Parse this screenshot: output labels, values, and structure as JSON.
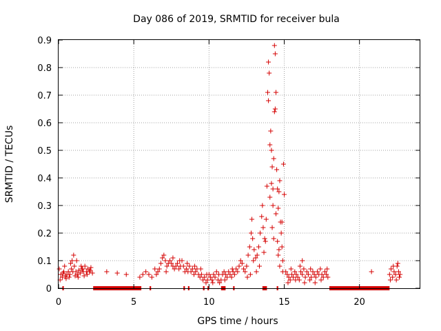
{
  "chart_data": {
    "type": "scatter",
    "title": "Day 086 of 2019, SRMTID for receiver bula",
    "xlabel": "GPS time / hours",
    "ylabel": "SRMTID / TECUs",
    "xlim": [
      0,
      24
    ],
    "ylim": [
      0,
      0.9
    ],
    "x_ticks": [
      0,
      5,
      10,
      15,
      20
    ],
    "y_ticks": [
      0,
      0.1,
      0.2,
      0.3,
      0.4,
      0.5,
      0.6,
      0.7,
      0.8,
      0.9
    ],
    "x_tick_labels": [
      "0",
      "5",
      "10",
      "15",
      "20"
    ],
    "y_tick_labels": [
      "0",
      "0.1",
      "0.2",
      "0.3",
      "0.4",
      "0.5",
      "0.6",
      "0.7",
      "0.8",
      "0.9"
    ],
    "marker": "+",
    "color": "#d40000",
    "grid": true,
    "series": [
      {
        "name": "SRMTID",
        "points": [
          [
            0.05,
            0.07
          ],
          [
            0.15,
            0.05
          ],
          [
            0.25,
            0.04
          ],
          [
            0.35,
            0.06
          ],
          [
            0.45,
            0.045
          ],
          [
            0.55,
            0.05
          ],
          [
            0.65,
            0.06
          ],
          [
            0.75,
            0.05
          ],
          [
            0.85,
            0.07
          ],
          [
            0.9,
            0.1
          ],
          [
            1.0,
            0.12
          ],
          [
            1.05,
            0.08
          ],
          [
            1.15,
            0.06
          ],
          [
            1.25,
            0.05
          ],
          [
            1.35,
            0.065
          ],
          [
            1.45,
            0.055
          ],
          [
            1.55,
            0.07
          ],
          [
            1.65,
            0.06
          ],
          [
            1.75,
            0.08
          ],
          [
            1.85,
            0.06
          ],
          [
            1.95,
            0.07
          ],
          [
            2.05,
            0.06
          ],
          [
            2.15,
            0.075
          ],
          [
            2.25,
            0.055
          ],
          [
            0.1,
            0.03
          ],
          [
            0.3,
            0.055
          ],
          [
            0.5,
            0.035
          ],
          [
            0.7,
            0.04
          ],
          [
            0.95,
            0.06
          ],
          [
            1.1,
            0.045
          ],
          [
            1.3,
            0.04
          ],
          [
            1.5,
            0.08
          ],
          [
            1.7,
            0.045
          ],
          [
            1.9,
            0.05
          ],
          [
            2.1,
            0.065
          ],
          [
            0.4,
            0.08
          ],
          [
            0.8,
            0.09
          ],
          [
            1.2,
            0.1
          ],
          [
            1.6,
            0.07
          ],
          [
            3.2,
            0.06
          ],
          [
            3.9,
            0.055
          ],
          [
            4.5,
            0.05
          ],
          [
            5.4,
            0.04
          ],
          [
            5.6,
            0.05
          ],
          [
            5.8,
            0.06
          ],
          [
            6.0,
            0.05
          ],
          [
            6.2,
            0.04
          ],
          [
            6.4,
            0.07
          ],
          [
            6.6,
            0.06
          ],
          [
            6.8,
            0.09
          ],
          [
            6.9,
            0.11
          ],
          [
            7.0,
            0.12
          ],
          [
            7.1,
            0.1
          ],
          [
            7.2,
            0.08
          ],
          [
            7.3,
            0.09
          ],
          [
            7.4,
            0.1
          ],
          [
            7.5,
            0.09
          ],
          [
            7.6,
            0.08
          ],
          [
            7.7,
            0.07
          ],
          [
            7.8,
            0.08
          ],
          [
            7.9,
            0.09
          ],
          [
            8.0,
            0.07
          ],
          [
            8.1,
            0.08
          ],
          [
            8.2,
            0.1
          ],
          [
            8.3,
            0.08
          ],
          [
            8.4,
            0.06
          ],
          [
            8.5,
            0.07
          ],
          [
            8.6,
            0.06
          ],
          [
            8.7,
            0.08
          ],
          [
            8.8,
            0.06
          ],
          [
            8.9,
            0.07
          ],
          [
            9.0,
            0.05
          ],
          [
            9.1,
            0.06
          ],
          [
            9.2,
            0.07
          ],
          [
            9.3,
            0.05
          ],
          [
            9.4,
            0.04
          ],
          [
            9.5,
            0.05
          ],
          [
            9.6,
            0.03
          ],
          [
            9.7,
            0.04
          ],
          [
            9.8,
            0.02
          ],
          [
            9.9,
            0.03
          ],
          [
            10.0,
            0.05
          ],
          [
            10.1,
            0.04
          ],
          [
            10.2,
            0.03
          ],
          [
            10.3,
            0.05
          ],
          [
            10.4,
            0.04
          ],
          [
            10.5,
            0.06
          ],
          [
            10.6,
            0.03
          ],
          [
            10.7,
            0.02
          ],
          [
            10.8,
            0.03
          ],
          [
            10.9,
            0.05
          ],
          [
            11.0,
            0.06
          ],
          [
            11.1,
            0.05
          ],
          [
            11.2,
            0.04
          ],
          [
            11.3,
            0.06
          ],
          [
            11.4,
            0.05
          ],
          [
            11.5,
            0.04
          ],
          [
            11.6,
            0.06
          ],
          [
            11.7,
            0.05
          ],
          [
            11.8,
            0.07
          ],
          [
            11.9,
            0.06
          ],
          [
            6.5,
            0.05
          ],
          [
            6.7,
            0.07
          ],
          [
            7.15,
            0.06
          ],
          [
            7.6,
            0.11
          ],
          [
            8.05,
            0.1
          ],
          [
            8.55,
            0.09
          ],
          [
            9.05,
            0.08
          ],
          [
            9.45,
            0.07
          ],
          [
            9.85,
            0.05
          ],
          [
            10.25,
            0.02
          ],
          [
            10.65,
            0.05
          ],
          [
            11.05,
            0.03
          ],
          [
            11.55,
            0.07
          ],
          [
            12.0,
            0.08
          ],
          [
            12.1,
            0.1
          ],
          [
            12.2,
            0.09
          ],
          [
            12.3,
            0.07
          ],
          [
            12.4,
            0.06
          ],
          [
            12.5,
            0.08
          ],
          [
            12.6,
            0.12
          ],
          [
            12.7,
            0.15
          ],
          [
            12.8,
            0.2
          ],
          [
            12.85,
            0.25
          ],
          [
            12.9,
            0.18
          ],
          [
            13.0,
            0.14
          ],
          [
            13.1,
            0.11
          ],
          [
            13.2,
            0.12
          ],
          [
            13.3,
            0.15
          ],
          [
            13.4,
            0.2
          ],
          [
            13.5,
            0.26
          ],
          [
            13.55,
            0.3
          ],
          [
            13.6,
            0.22
          ],
          [
            13.7,
            0.18
          ],
          [
            13.8,
            0.25
          ],
          [
            13.85,
            0.37
          ],
          [
            13.9,
            0.71
          ],
          [
            13.95,
            0.82
          ],
          [
            14.0,
            0.78
          ],
          [
            14.05,
            0.52
          ],
          [
            14.1,
            0.57
          ],
          [
            14.15,
            0.38
          ],
          [
            14.2,
            0.44
          ],
          [
            14.25,
            0.36
          ],
          [
            14.3,
            0.47
          ],
          [
            14.35,
            0.64
          ],
          [
            14.4,
            0.65
          ],
          [
            14.45,
            0.71
          ],
          [
            14.5,
            0.43
          ],
          [
            14.55,
            0.36
          ],
          [
            14.6,
            0.29
          ],
          [
            14.65,
            0.35
          ],
          [
            14.7,
            0.39
          ],
          [
            14.75,
            0.24
          ],
          [
            14.8,
            0.2
          ],
          [
            14.85,
            0.15
          ],
          [
            14.9,
            0.1
          ],
          [
            14.95,
            0.45
          ],
          [
            15.0,
            0.34
          ],
          [
            14.35,
            0.88
          ],
          [
            14.4,
            0.85
          ],
          [
            13.95,
            0.68
          ],
          [
            14.15,
            0.5
          ],
          [
            14.25,
            0.3
          ],
          [
            14.45,
            0.27
          ],
          [
            14.55,
            0.17
          ],
          [
            14.65,
            0.14
          ],
          [
            14.85,
            0.24
          ],
          [
            13.75,
            0.17
          ],
          [
            13.65,
            0.13
          ],
          [
            13.35,
            0.08
          ],
          [
            13.15,
            0.06
          ],
          [
            12.95,
            0.1
          ],
          [
            12.75,
            0.05
          ],
          [
            12.55,
            0.04
          ],
          [
            14.05,
            0.33
          ],
          [
            14.2,
            0.22
          ],
          [
            14.3,
            0.18
          ],
          [
            14.6,
            0.12
          ],
          [
            14.7,
            0.08
          ],
          [
            14.9,
            0.06
          ],
          [
            15.1,
            0.06
          ],
          [
            15.2,
            0.05
          ],
          [
            15.3,
            0.04
          ],
          [
            15.4,
            0.03
          ],
          [
            15.5,
            0.05
          ],
          [
            15.6,
            0.04
          ],
          [
            15.7,
            0.06
          ],
          [
            15.8,
            0.05
          ],
          [
            15.9,
            0.04
          ],
          [
            16.0,
            0.03
          ],
          [
            16.1,
            0.06
          ],
          [
            16.2,
            0.05
          ],
          [
            16.3,
            0.07
          ],
          [
            16.4,
            0.04
          ],
          [
            16.5,
            0.06
          ],
          [
            16.6,
            0.05
          ],
          [
            16.7,
            0.03
          ],
          [
            16.8,
            0.04
          ],
          [
            16.9,
            0.06
          ],
          [
            17.0,
            0.05
          ],
          [
            17.1,
            0.04
          ],
          [
            17.2,
            0.06
          ],
          [
            17.3,
            0.05
          ],
          [
            17.4,
            0.07
          ],
          [
            17.5,
            0.05
          ],
          [
            17.6,
            0.04
          ],
          [
            17.7,
            0.06
          ],
          [
            17.8,
            0.05
          ],
          [
            17.9,
            0.04
          ],
          [
            15.25,
            0.02
          ],
          [
            15.45,
            0.07
          ],
          [
            15.75,
            0.03
          ],
          [
            16.05,
            0.08
          ],
          [
            16.35,
            0.02
          ],
          [
            16.75,
            0.07
          ],
          [
            17.05,
            0.02
          ],
          [
            17.45,
            0.03
          ],
          [
            17.85,
            0.07
          ],
          [
            16.2,
            0.1
          ],
          [
            20.8,
            0.06
          ],
          [
            22.0,
            0.05
          ],
          [
            22.1,
            0.07
          ],
          [
            22.2,
            0.04
          ],
          [
            22.3,
            0.06
          ],
          [
            22.4,
            0.05
          ],
          [
            22.5,
            0.08
          ],
          [
            22.6,
            0.06
          ],
          [
            22.7,
            0.05
          ],
          [
            22.05,
            0.03
          ],
          [
            22.25,
            0.08
          ],
          [
            22.45,
            0.03
          ],
          [
            22.55,
            0.09
          ],
          [
            22.65,
            0.04
          ]
        ]
      }
    ],
    "zero_segments": [
      [
        0.25,
        0.35
      ],
      [
        2.3,
        5.5
      ],
      [
        6.05,
        6.15
      ],
      [
        8.3,
        8.4
      ],
      [
        8.6,
        8.7
      ],
      [
        9.6,
        9.7
      ],
      [
        9.9,
        10.0
      ],
      [
        10.8,
        11.1
      ],
      [
        11.6,
        11.7
      ],
      [
        13.55,
        13.85
      ],
      [
        14.5,
        14.6
      ],
      [
        18.0,
        22.0
      ]
    ]
  }
}
